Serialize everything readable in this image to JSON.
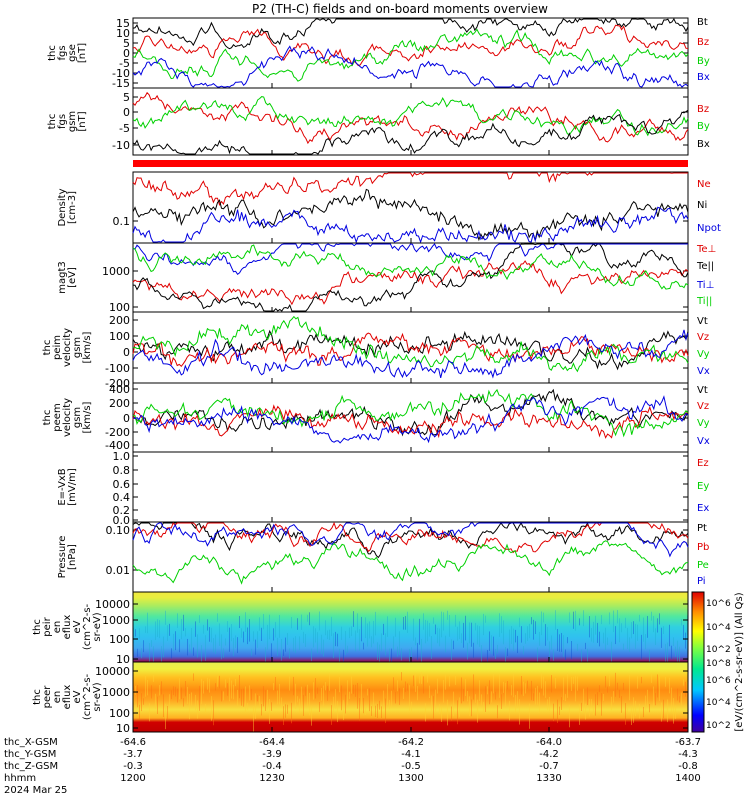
{
  "title": "P2 (TH-C) fields and on-board moments overview",
  "colors": {
    "black": "#000000",
    "red": "#e00000",
    "green": "#00d000",
    "blue": "#0000e0"
  },
  "x_axis": {
    "rows": [
      {
        "label": "thc_X-GSM",
        "values": [
          "-64.6",
          "-64.4",
          "-64.2",
          "-64.0",
          "-63.7"
        ]
      },
      {
        "label": "thc_Y-GSM",
        "values": [
          "-3.7",
          "-3.9",
          "-4.1",
          "-4.2",
          "-4.3"
        ]
      },
      {
        "label": "thc_Z-GSM",
        "values": [
          "-0.3",
          "-0.4",
          "-0.5",
          "-0.7",
          "-0.8"
        ]
      },
      {
        "label": "hhmm",
        "values": [
          "1200",
          "1230",
          "1300",
          "1330",
          "1400"
        ]
      }
    ],
    "date": "2024 Mar 25"
  },
  "colorbar": {
    "label": "[eV/(cm^2-s-sr-eV)] (All Qs)",
    "ticks_top": [
      "10^6",
      "10^4",
      "10^2"
    ],
    "ticks_bottom": [
      "10^8",
      "10^6",
      "10^4",
      "10^2"
    ]
  },
  "chart_data": [
    {
      "type": "line",
      "panel": "fgs_gse",
      "ylabel": [
        "thc",
        "fgs",
        "gse",
        "[nT]"
      ],
      "yticks": [
        "15",
        "10",
        "5",
        "0",
        "-5",
        "-10",
        "-15"
      ],
      "ylim": [
        -17,
        17
      ],
      "series": [
        {
          "name": "Bt",
          "color": "#000000",
          "approx_level": 13
        },
        {
          "name": "Bz",
          "color": "#e00000",
          "approx_level": 4
        },
        {
          "name": "By",
          "color": "#00d000",
          "approx_level": -2
        },
        {
          "name": "Bx",
          "color": "#0000e0",
          "approx_level": -9
        }
      ]
    },
    {
      "type": "line",
      "panel": "fgs_gsm",
      "ylabel": [
        "thc",
        "fgs",
        "gsm",
        "[nT]"
      ],
      "yticks": [
        "5",
        "0",
        "-5",
        "-10"
      ],
      "ylim": [
        -14,
        9
      ],
      "series": [
        {
          "name": "Bz",
          "color": "#e00000",
          "approx_level": 2
        },
        {
          "name": "By",
          "color": "#00d000",
          "approx_level": -3
        },
        {
          "name": "Bx",
          "color": "#000000",
          "approx_level": -10
        }
      ]
    },
    {
      "type": "line",
      "panel": "density",
      "ylabel": [
        "Density",
        "[cm-3]"
      ],
      "yticks": [
        "0.1"
      ],
      "scale": "log",
      "series": [
        {
          "name": "Ne",
          "color": "#e00000",
          "approx_level": 0.6
        },
        {
          "name": "Ni",
          "color": "#000000",
          "approx_level": 0.15
        },
        {
          "name": "Npot",
          "color": "#0000e0",
          "approx_level": 0.05
        }
      ]
    },
    {
      "type": "line",
      "panel": "temperature",
      "ylabel": [
        "magt3",
        "[eV]"
      ],
      "yticks": [
        "1000",
        "100"
      ],
      "scale": "log",
      "series": [
        {
          "name": "Te⊥",
          "color": "#e00000",
          "approx_level": 400
        },
        {
          "name": "Te||",
          "color": "#000000",
          "approx_level": 300
        },
        {
          "name": "Ti⊥",
          "color": "#0000e0",
          "approx_level": 2200
        },
        {
          "name": "Ti||",
          "color": "#00d000",
          "approx_level": 1800
        }
      ]
    },
    {
      "type": "line",
      "panel": "peim_velocity",
      "ylabel": [
        "thc",
        "peim",
        "velocity",
        "gsm",
        "[km/s]"
      ],
      "yticks": [
        "200",
        "100",
        "0",
        "-100",
        "-200"
      ],
      "ylim": [
        -220,
        250
      ],
      "series": [
        {
          "name": "Vt",
          "color": "#000000",
          "approx_level": 60
        },
        {
          "name": "Vz",
          "color": "#e00000",
          "approx_level": 0
        },
        {
          "name": "Vy",
          "color": "#00d000",
          "approx_level": 10
        },
        {
          "name": "Vx",
          "color": "#0000e0",
          "approx_level": -40
        }
      ]
    },
    {
      "type": "line",
      "panel": "peem_velocity",
      "ylabel": [
        "thc",
        "peem",
        "velocity",
        "gsm",
        "[km/s]"
      ],
      "yticks": [
        "400",
        "200",
        "0",
        "-200",
        "-400"
      ],
      "ylim": [
        -430,
        420
      ],
      "series": [
        {
          "name": "Vt",
          "color": "#000000",
          "approx_level": 100
        },
        {
          "name": "Vz",
          "color": "#e00000",
          "approx_level": -20
        },
        {
          "name": "Vy",
          "color": "#00d000",
          "approx_level": 40
        },
        {
          "name": "Vx",
          "color": "#0000e0",
          "approx_level": -60
        }
      ]
    },
    {
      "type": "line",
      "panel": "e_field",
      "ylabel": [
        "E=-VxB",
        "[mV/m]"
      ],
      "yticks": [
        "1.0",
        "0.8",
        "0.6",
        "0.4",
        "0.2",
        "0.0"
      ],
      "ylim": [
        0,
        1
      ],
      "series": [
        {
          "name": "Ez",
          "color": "#e00000"
        },
        {
          "name": "Ey",
          "color": "#00d000"
        },
        {
          "name": "Ex",
          "color": "#0000e0"
        }
      ]
    },
    {
      "type": "line",
      "panel": "pressure",
      "ylabel": [
        "Pressure",
        "[nPa]"
      ],
      "yticks": [
        "0.10",
        "0.01"
      ],
      "scale": "log",
      "series": [
        {
          "name": "Pt",
          "color": "#000000",
          "approx_level": 0.12
        },
        {
          "name": "Pb",
          "color": "#e00000",
          "approx_level": 0.06
        },
        {
          "name": "Pe",
          "color": "#00d000",
          "approx_level": 0.01
        },
        {
          "name": "Pi",
          "color": "#0000e0",
          "approx_level": 0.06
        }
      ]
    },
    {
      "type": "heatmap",
      "panel": "ion_spectrogram",
      "ylabel": [
        "thc",
        "peir",
        "en",
        "eflux",
        "eV",
        "(cm^2-s-",
        "sr-eV)"
      ],
      "yticks": [
        "10000",
        "1000",
        "100",
        "10"
      ],
      "scale": "log"
    },
    {
      "type": "heatmap",
      "panel": "electron_spectrogram",
      "ylabel": [
        "thc",
        "peer",
        "en",
        "eflux",
        "eV",
        "(cm^2-s-",
        "sr-eV)"
      ],
      "yticks": [
        "10000",
        "1000",
        "100",
        "10"
      ],
      "scale": "log"
    }
  ]
}
